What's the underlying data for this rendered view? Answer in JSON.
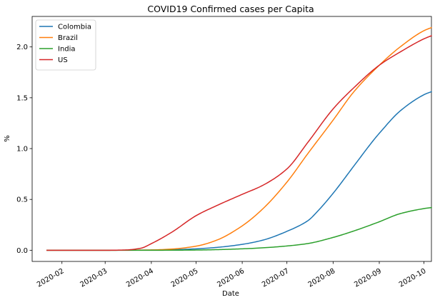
{
  "chart_data": {
    "type": "line",
    "title": "COVID19 Confirmed cases per Capita",
    "xlabel": "Date",
    "ylabel": "%",
    "x_range": [
      "2020-01-12",
      "2020-10-06"
    ],
    "ylim": [
      -0.11,
      2.3
    ],
    "x_ticks": [
      "2020-02-01",
      "2020-03-01",
      "2020-04-01",
      "2020-05-01",
      "2020-06-01",
      "2020-07-01",
      "2020-08-01",
      "2020-09-01",
      "2020-10-01"
    ],
    "x_tick_labels": [
      "2020-02",
      "2020-03",
      "2020-04",
      "2020-05",
      "2020-06",
      "2020-07",
      "2020-08",
      "2020-09",
      "2020-10"
    ],
    "y_ticks": [
      0.0,
      0.5,
      1.0,
      1.5,
      2.0
    ],
    "y_tick_labels": [
      "0.0",
      "0.5",
      "1.0",
      "1.5",
      "2.0"
    ],
    "grid": false,
    "legend_position": "top-left",
    "series": [
      {
        "name": "Colombia",
        "color": "#1f77b4",
        "points": [
          [
            "2020-01-22",
            0.0
          ],
          [
            "2020-03-01",
            0.0
          ],
          [
            "2020-03-15",
            0.0005
          ],
          [
            "2020-04-01",
            0.002
          ],
          [
            "2020-04-15",
            0.005
          ],
          [
            "2020-05-01",
            0.014
          ],
          [
            "2020-05-15",
            0.028
          ],
          [
            "2020-06-01",
            0.058
          ],
          [
            "2020-06-15",
            0.1
          ],
          [
            "2020-07-01",
            0.186
          ],
          [
            "2020-07-15",
            0.29
          ],
          [
            "2020-07-22",
            0.39
          ],
          [
            "2020-08-01",
            0.56
          ],
          [
            "2020-08-15",
            0.83
          ],
          [
            "2020-08-28",
            1.08
          ],
          [
            "2020-09-01",
            1.15
          ],
          [
            "2020-09-15",
            1.37
          ],
          [
            "2020-10-01",
            1.53
          ],
          [
            "2020-10-06",
            1.56
          ]
        ]
      },
      {
        "name": "Brazil",
        "color": "#ff7f0e",
        "points": [
          [
            "2020-01-22",
            0.0
          ],
          [
            "2020-03-01",
            0.0
          ],
          [
            "2020-03-20",
            0.001
          ],
          [
            "2020-04-01",
            0.003
          ],
          [
            "2020-04-15",
            0.012
          ],
          [
            "2020-05-01",
            0.04
          ],
          [
            "2020-05-15",
            0.1
          ],
          [
            "2020-06-01",
            0.24
          ],
          [
            "2020-06-15",
            0.41
          ],
          [
            "2020-07-01",
            0.67
          ],
          [
            "2020-07-15",
            0.95
          ],
          [
            "2020-08-01",
            1.28
          ],
          [
            "2020-08-15",
            1.56
          ],
          [
            "2020-09-01",
            1.82
          ],
          [
            "2020-09-15",
            2.0
          ],
          [
            "2020-10-01",
            2.16
          ],
          [
            "2020-10-06",
            2.19
          ]
        ]
      },
      {
        "name": "India",
        "color": "#2ca02c",
        "points": [
          [
            "2020-01-22",
            0.0
          ],
          [
            "2020-04-01",
            0.0
          ],
          [
            "2020-05-01",
            0.002
          ],
          [
            "2020-05-15",
            0.006
          ],
          [
            "2020-06-01",
            0.014
          ],
          [
            "2020-06-15",
            0.024
          ],
          [
            "2020-07-01",
            0.042
          ],
          [
            "2020-07-15",
            0.066
          ],
          [
            "2020-08-01",
            0.126
          ],
          [
            "2020-08-15",
            0.19
          ],
          [
            "2020-09-01",
            0.28
          ],
          [
            "2020-09-15",
            0.36
          ],
          [
            "2020-10-01",
            0.41
          ],
          [
            "2020-10-06",
            0.42
          ]
        ]
      },
      {
        "name": "US",
        "color": "#d62728",
        "points": [
          [
            "2020-01-22",
            0.0
          ],
          [
            "2020-03-01",
            0.0
          ],
          [
            "2020-03-15",
            0.003
          ],
          [
            "2020-03-25",
            0.02
          ],
          [
            "2020-04-01",
            0.065
          ],
          [
            "2020-04-15",
            0.18
          ],
          [
            "2020-05-01",
            0.34
          ],
          [
            "2020-05-15",
            0.44
          ],
          [
            "2020-06-01",
            0.55
          ],
          [
            "2020-06-15",
            0.64
          ],
          [
            "2020-07-01",
            0.8
          ],
          [
            "2020-07-15",
            1.06
          ],
          [
            "2020-08-01",
            1.39
          ],
          [
            "2020-08-15",
            1.6
          ],
          [
            "2020-09-01",
            1.82
          ],
          [
            "2020-09-15",
            1.95
          ],
          [
            "2020-10-01",
            2.08
          ],
          [
            "2020-10-06",
            2.11
          ]
        ]
      }
    ]
  }
}
